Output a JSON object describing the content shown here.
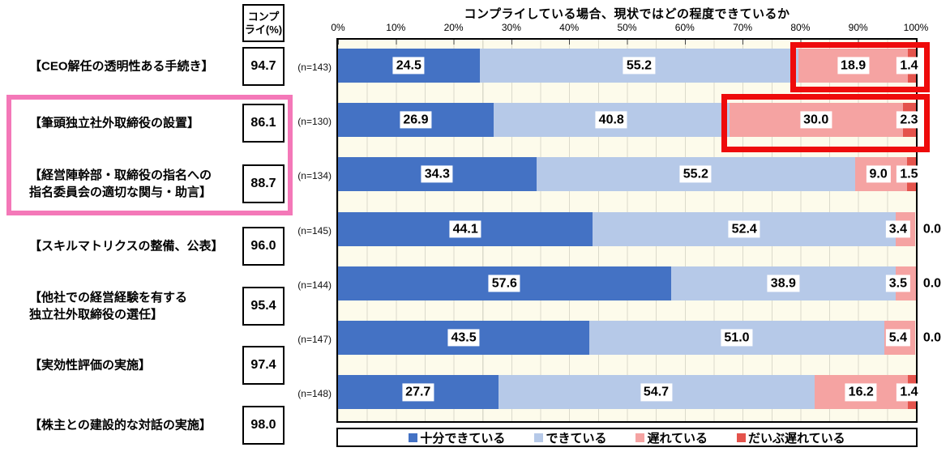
{
  "figure": {
    "comply_header_lines": [
      "コンプ",
      "ライ(%)"
    ]
  },
  "chart_data": {
    "type": "bar",
    "variant": "horizontal-stacked-100pct",
    "title": "コンプライしている場合、現状ではどの程度できているか",
    "x_axis": {
      "tick_labels": [
        "0%",
        "10%",
        "20%",
        "30%",
        "40%",
        "50%",
        "60%",
        "70%",
        "80%",
        "90%",
        "100%"
      ],
      "range_pct": [
        0,
        100
      ],
      "minor_gridline_step_pct": 5,
      "position": "top"
    },
    "comply_column": {
      "header": "コンプライ(%)",
      "values": [
        "94.7",
        "86.1",
        "88.7",
        "96.0",
        "95.4",
        "97.4",
        "98.0"
      ]
    },
    "categories": [
      {
        "label_lines": [
          "【CEO解任の透明性ある手続き】"
        ],
        "n": "(n=143)"
      },
      {
        "label_lines": [
          "【筆頭独立社外取締役の設置】"
        ],
        "n": "(n=130)"
      },
      {
        "label_lines": [
          "【経営陣幹部・取締役の指名への",
          "指名委員会の適切な関与・助言】"
        ],
        "n": "(n=134)"
      },
      {
        "label_lines": [
          "【スキルマトリクスの整備、公表】"
        ],
        "n": "(n=145)"
      },
      {
        "label_lines": [
          "【他社での経営経験を有する",
          "独立社外取締役の選任】"
        ],
        "n": "(n=144)"
      },
      {
        "label_lines": [
          "【実効性評価の実施】"
        ],
        "n": "(n=147)"
      },
      {
        "label_lines": [
          "【株主との建設的な対話の実施】"
        ],
        "n": "(n=148)"
      }
    ],
    "series": [
      {
        "name": "十分できている",
        "color": "#4472C4",
        "values": [
          24.5,
          26.9,
          34.3,
          44.1,
          57.6,
          43.5,
          27.7
        ]
      },
      {
        "name": "できている",
        "color": "#B6C9E8",
        "values": [
          55.2,
          40.8,
          55.2,
          52.4,
          38.9,
          51.0,
          54.7
        ]
      },
      {
        "name": "遅れている",
        "color": "#F5A3A2",
        "values": [
          18.9,
          30.0,
          9.0,
          3.4,
          3.5,
          5.4,
          16.2
        ]
      },
      {
        "name": "だいぶ遅れている",
        "color": "#E4534C",
        "values": [
          1.4,
          2.3,
          1.5,
          0.0,
          0.0,
          0.0,
          1.4
        ]
      }
    ],
    "legend": {
      "position": "bottom",
      "border": true
    },
    "plot_background": "#FDFBEB",
    "annotations": {
      "category_highlight_box": {
        "color": "#F478B8",
        "rows": [
          "【筆頭独立社外取締役の設置】",
          "【経営陣幹部・取締役の指名への指名委員会の適切な関与・助言】"
        ]
      },
      "bar_highlight_boxes": [
        {
          "row": "【CEO解任の透明性ある手続き】",
          "segments": [
            "遅れている",
            "だいぶ遅れている"
          ],
          "color": "#EE0B0B"
        },
        {
          "row": "【筆頭独立社外取締役の設置】",
          "segments": [
            "遅れている",
            "だいぶ遅れている"
          ],
          "color": "#EE0B0B"
        }
      ]
    }
  }
}
